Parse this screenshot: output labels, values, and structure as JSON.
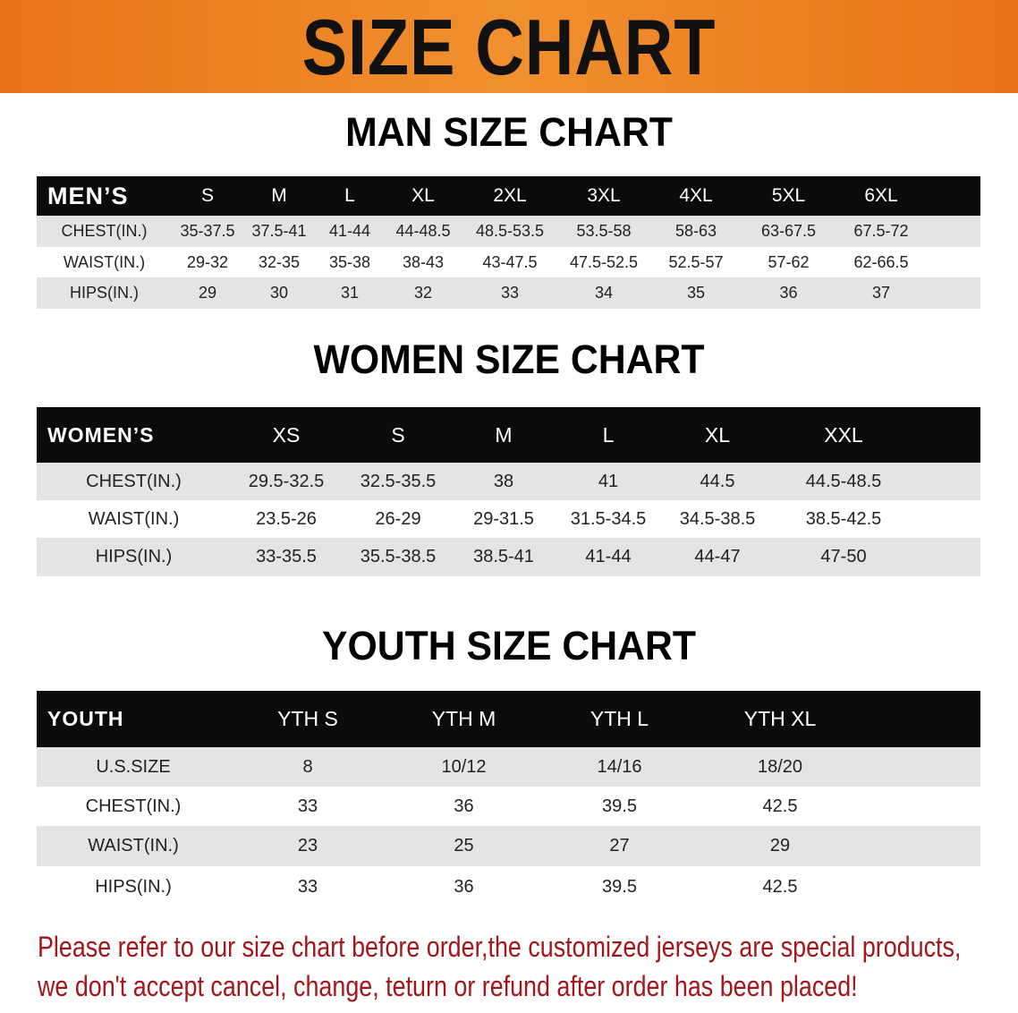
{
  "banner": {
    "title": "SIZE CHART",
    "color": "#e8731a"
  },
  "men": {
    "title": "MAN SIZE CHART",
    "header": [
      "MEN’S",
      "S",
      "M",
      "L",
      "XL",
      "2XL",
      "3XL",
      "4XL",
      "5XL",
      "6XL"
    ],
    "rows": [
      [
        "CHEST(IN.)",
        "35-37.5",
        "37.5-41",
        "41-44",
        "44-48.5",
        "48.5-53.5",
        "53.5-58",
        "58-63",
        "63-67.5",
        "67.5-72"
      ],
      [
        "WAIST(IN.)",
        "29-32",
        "32-35",
        "35-38",
        "38-43",
        "43-47.5",
        "47.5-52.5",
        "52.5-57",
        "57-62",
        "62-66.5"
      ],
      [
        "HIPS(IN.)",
        "29",
        "30",
        "31",
        "32",
        "33",
        "34",
        "35",
        "36",
        "37"
      ]
    ]
  },
  "women": {
    "title": "WOMEN SIZE CHART",
    "header": [
      "WOMEN’S",
      "XS",
      "S",
      "M",
      "L",
      "XL",
      "XXL"
    ],
    "rows": [
      [
        "CHEST(IN.)",
        "29.5-32.5",
        "32.5-35.5",
        "38",
        "41",
        "44.5",
        "44.5-48.5"
      ],
      [
        "WAIST(IN.)",
        "23.5-26",
        "26-29",
        "29-31.5",
        "31.5-34.5",
        "34.5-38.5",
        "38.5-42.5"
      ],
      [
        "HIPS(IN.)",
        "33-35.5",
        "35.5-38.5",
        "38.5-41",
        "41-44",
        "44-47",
        "47-50"
      ]
    ]
  },
  "youth": {
    "title": "YOUTH SIZE CHART",
    "header": [
      "YOUTH",
      "YTH S",
      "YTH M",
      "YTH L",
      "YTH XL"
    ],
    "rows": [
      [
        "U.S.SIZE",
        "8",
        "10/12",
        "14/16",
        "18/20"
      ],
      [
        "CHEST(IN.)",
        "33",
        "36",
        "39.5",
        "42.5"
      ],
      [
        "WAIST(IN.)",
        "23",
        "25",
        "27",
        "29"
      ],
      [
        "HIPS(IN.)",
        "33",
        "36",
        "39.5",
        "42.5"
      ]
    ]
  },
  "footer": {
    "line1": "Please refer to our size chart before order,the customized jerseys are special products,",
    "line2": "we don't accept cancel, change, teturn or refund after order has been placed!",
    "color": "#a3161a"
  }
}
